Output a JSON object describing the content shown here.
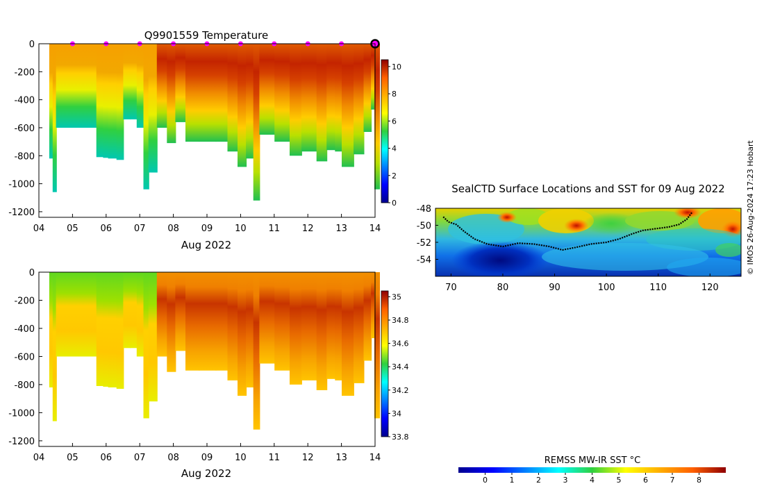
{
  "figure": {
    "credit": "© IMOS 26-Aug-2024 17:23 Hobart",
    "map_colorbar_label": "REMSS MW-IR SST °C"
  },
  "chart_data": [
    {
      "id": "temperature_section",
      "type": "heatmap",
      "title": "Q9901559  Temperature",
      "xlabel": "Aug 2022",
      "ylabel": "",
      "x_ticks": [
        "04",
        "05",
        "06",
        "07",
        "08",
        "09",
        "10",
        "11",
        "12",
        "13",
        "14"
      ],
      "x_range_days": [
        4,
        14
      ],
      "y_ticks": [
        0,
        -200,
        -400,
        -600,
        -800,
        -1000,
        -1200
      ],
      "ylim": [
        -1240,
        0
      ],
      "colorbar": {
        "min": 0,
        "max": 10.5,
        "ticks": [
          0,
          2,
          4,
          6,
          8,
          10
        ],
        "colormap": "jet"
      },
      "surfacing_markers_day": [
        5,
        6,
        7,
        8,
        9,
        10,
        11,
        12,
        13
      ],
      "final_position_day": 14,
      "profiles": [
        {
          "day": 4.35,
          "depth": -820
        },
        {
          "day": 4.45,
          "depth": -1060
        },
        {
          "day": 4.55,
          "depth": -600
        },
        {
          "day": 4.7,
          "depth": -600
        },
        {
          "day": 4.9,
          "depth": -600
        },
        {
          "day": 5.75,
          "depth": -810
        },
        {
          "day": 5.95,
          "depth": -815
        },
        {
          "day": 6.1,
          "depth": -820
        },
        {
          "day": 6.35,
          "depth": -830
        },
        {
          "day": 6.55,
          "depth": -540
        },
        {
          "day": 6.75,
          "depth": -540
        },
        {
          "day": 6.95,
          "depth": -600
        },
        {
          "day": 7.15,
          "depth": -1040
        },
        {
          "day": 7.3,
          "depth": -920
        },
        {
          "day": 7.55,
          "depth": -600
        },
        {
          "day": 7.85,
          "depth": -710
        },
        {
          "day": 8.1,
          "depth": -560
        },
        {
          "day": 8.4,
          "depth": -700
        },
        {
          "day": 8.8,
          "depth": -700
        },
        {
          "day": 9.3,
          "depth": -700
        },
        {
          "day": 9.65,
          "depth": -770
        },
        {
          "day": 9.95,
          "depth": -880
        },
        {
          "day": 10.2,
          "depth": -820
        },
        {
          "day": 10.42,
          "depth": -1120
        },
        {
          "day": 10.6,
          "depth": -650
        },
        {
          "day": 11.05,
          "depth": -700
        },
        {
          "day": 11.5,
          "depth": -800
        },
        {
          "day": 11.85,
          "depth": -770
        },
        {
          "day": 12.3,
          "depth": -840
        },
        {
          "day": 12.6,
          "depth": -760
        },
        {
          "day": 12.85,
          "depth": -770
        },
        {
          "day": 13.05,
          "depth": -880
        },
        {
          "day": 13.4,
          "depth": -790
        },
        {
          "day": 13.7,
          "depth": -630
        },
        {
          "day": 13.92,
          "depth": -470
        },
        {
          "day": 14.02,
          "depth": -1040
        }
      ]
    },
    {
      "id": "salinity_section",
      "type": "heatmap",
      "title": "",
      "xlabel": "Aug 2022",
      "ylabel": "",
      "x_ticks": [
        "04",
        "05",
        "06",
        "07",
        "08",
        "09",
        "10",
        "11",
        "12",
        "13",
        "14"
      ],
      "x_range_days": [
        4,
        14
      ],
      "y_ticks": [
        0,
        -200,
        -400,
        -600,
        -800,
        -1000,
        -1200
      ],
      "ylim": [
        -1240,
        0
      ],
      "colorbar": {
        "min": 33.8,
        "max": 35.05,
        "ticks": [
          33.8,
          34,
          34.2,
          34.4,
          34.6,
          34.8,
          35
        ],
        "colormap": "jet"
      },
      "profiles_same_as": "temperature_section"
    },
    {
      "id": "sst_map",
      "type": "heatmap",
      "title": "SealCTD Surface Locations and SST for 09 Aug 2022",
      "xlabel": "",
      "ylabel": "",
      "x_ticks": [
        70,
        80,
        90,
        100,
        110,
        120
      ],
      "xlim": [
        67,
        126
      ],
      "y_ticks": [
        -48,
        -50,
        -52,
        -54
      ],
      "ylim": [
        -56,
        -48
      ],
      "colorbar": {
        "label": "REMSS MW-IR SST °C",
        "min": -1,
        "max": 9,
        "ticks": [
          0,
          1,
          2,
          3,
          4,
          5,
          6,
          7,
          8
        ],
        "colormap": "jet"
      },
      "track": [
        {
          "lon": 68.5,
          "lat": -49.0
        },
        {
          "lon": 69.5,
          "lat": -49.6
        },
        {
          "lon": 71,
          "lat": -49.9
        },
        {
          "lon": 72.5,
          "lat": -50.7
        },
        {
          "lon": 74.5,
          "lat": -51.6
        },
        {
          "lon": 77,
          "lat": -52.2
        },
        {
          "lon": 80,
          "lat": -52.5
        },
        {
          "lon": 83,
          "lat": -52.1
        },
        {
          "lon": 86,
          "lat": -52.2
        },
        {
          "lon": 89,
          "lat": -52.5
        },
        {
          "lon": 91.5,
          "lat": -52.9
        },
        {
          "lon": 94,
          "lat": -52.6
        },
        {
          "lon": 97,
          "lat": -52.2
        },
        {
          "lon": 100,
          "lat": -52.0
        },
        {
          "lon": 102.5,
          "lat": -51.6
        },
        {
          "lon": 105,
          "lat": -51.0
        },
        {
          "lon": 107,
          "lat": -50.6
        },
        {
          "lon": 109.5,
          "lat": -50.4
        },
        {
          "lon": 112,
          "lat": -50.2
        },
        {
          "lon": 114,
          "lat": -49.9
        },
        {
          "lon": 115.5,
          "lat": -49.3
        },
        {
          "lon": 116.5,
          "lat": -48.5
        }
      ]
    }
  ]
}
